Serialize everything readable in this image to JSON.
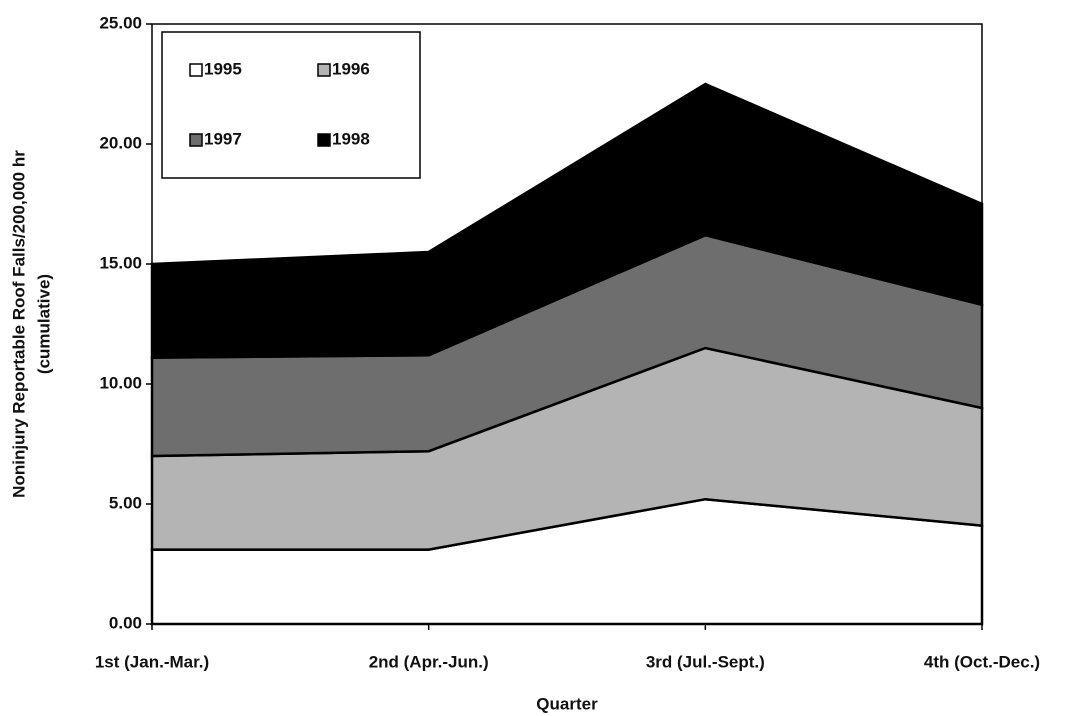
{
  "chart_data": {
    "type": "stacked_area",
    "xlabel": "Quarter",
    "ylabel": [
      "Noninjury Reportable Roof Falls/200,000 hr",
      "(cumulative)"
    ],
    "categories": [
      "1st (Jan.-Mar.)",
      "2nd (Apr.-Jun.)",
      "3rd  (Jul.-Sept.)",
      "4th (Oct.-Dec.)"
    ],
    "series": [
      {
        "name": "1995",
        "color": "#ffffff",
        "values": [
          3.1,
          3.1,
          5.2,
          4.1
        ]
      },
      {
        "name": "1996",
        "color": "#b4b4b4",
        "values": [
          3.9,
          4.1,
          6.3,
          4.9
        ]
      },
      {
        "name": "1997",
        "color": "#6e6e6e",
        "values": [
          4.1,
          4.0,
          4.7,
          4.3
        ]
      },
      {
        "name": "1998",
        "color": "#000000",
        "values": [
          3.9,
          4.3,
          6.3,
          4.2
        ]
      }
    ],
    "ylim": [
      0,
      25
    ],
    "yticks": [
      {
        "value": 0,
        "label": "0.00"
      },
      {
        "value": 5,
        "label": "5.00"
      },
      {
        "value": 10,
        "label": "10.00"
      },
      {
        "value": 15,
        "label": "15.00"
      },
      {
        "value": 20,
        "label": "20.00"
      },
      {
        "value": 25,
        "label": "25.00"
      }
    ],
    "legend": "upper left"
  }
}
